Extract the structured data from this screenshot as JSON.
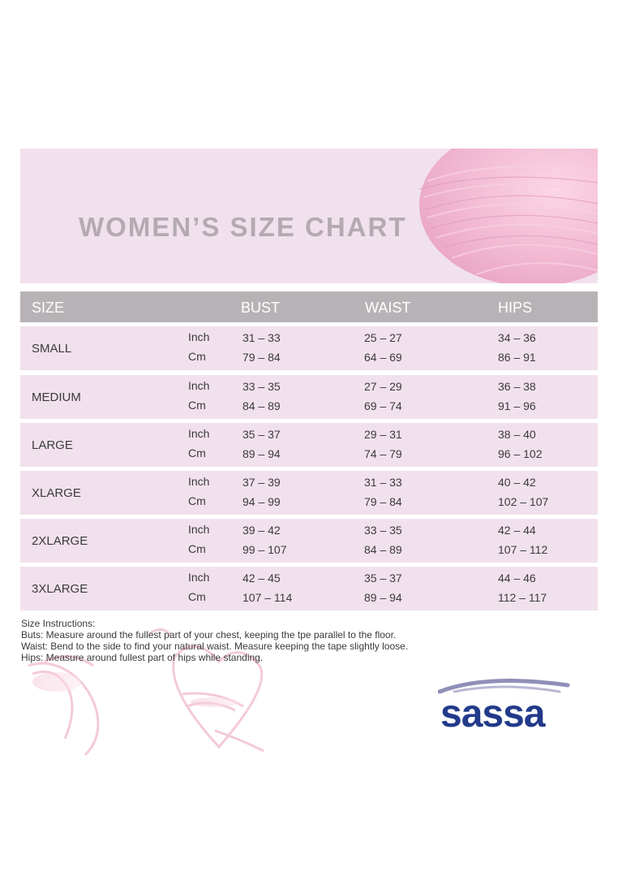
{
  "title": "WOMEN’S SIZE CHART",
  "header": {
    "size": "SIZE",
    "bust": "BUST",
    "waist": "WAIST",
    "hips": "HIPS"
  },
  "rows": [
    {
      "size": "SMALL",
      "inch_label": "Inch",
      "cm_label": "Cm",
      "bust_in": "31 – 33",
      "bust_cm": "79 – 84",
      "waist_in": "25 – 27",
      "waist_cm": "64 – 69",
      "hips_in": "34 – 36",
      "hips_cm": "86 – 91"
    },
    {
      "size": "MEDIUM",
      "inch_label": "Inch",
      "cm_label": "Cm",
      "bust_in": "33 – 35",
      "bust_cm": "84 – 89",
      "waist_in": "27 – 29",
      "waist_cm": "69 – 74",
      "hips_in": "36 – 38",
      "hips_cm": "91 – 96"
    },
    {
      "size": "LARGE",
      "inch_label": "Inch",
      "cm_label": "Cm",
      "bust_in": "35 – 37",
      "bust_cm": "89 – 94",
      "waist_in": "29 – 31",
      "waist_cm": "74 – 79",
      "hips_in": "38 – 40",
      "hips_cm": "96 – 102"
    },
    {
      "size": "XLARGE",
      "inch_label": "Inch",
      "cm_label": "Cm",
      "bust_in": "37 – 39",
      "bust_cm": "94 – 99",
      "waist_in": "31 – 33",
      "waist_cm": "79 – 84",
      "hips_in": "40 –  42",
      "hips_cm": "102 – 107"
    },
    {
      "size": "2XLARGE",
      "inch_label": "Inch",
      "cm_label": "Cm",
      "bust_in": "39 – 42",
      "bust_cm": "99 – 107",
      "waist_in": "33 – 35",
      "waist_cm": "84 – 89",
      "hips_in": "42 –  44",
      "hips_cm": "107 – 112"
    },
    {
      "size": "3XLARGE",
      "inch_label": "Inch",
      "cm_label": "Cm",
      "bust_in": "42 – 45",
      "bust_cm": "107 – 114",
      "waist_in": "35 – 37",
      "waist_cm": "89 – 94",
      "hips_in": "44 –  46",
      "hips_cm": "112 – 117"
    }
  ],
  "instructions": {
    "heading": "Size Instructions:",
    "bust": "Buts: Measure around the fullest part of your chest, keeping the tpe parallel to the floor.",
    "waist": "Waist: Bend to the side to find your natural waist. Measure keeping the tape slightly loose.",
    "hips": "Hips: Measure around fullest part of hips while standing."
  },
  "brand": {
    "name": "sassa",
    "color": "#223a8a",
    "wave_colors": [
      "#8f8fb8",
      "#b8b8d4"
    ]
  },
  "colors": {
    "row_bg": "#f1e1ed",
    "header_bg": "#b7b2b6",
    "title": "#b4aab2",
    "yarn": "#f2b9d2"
  }
}
